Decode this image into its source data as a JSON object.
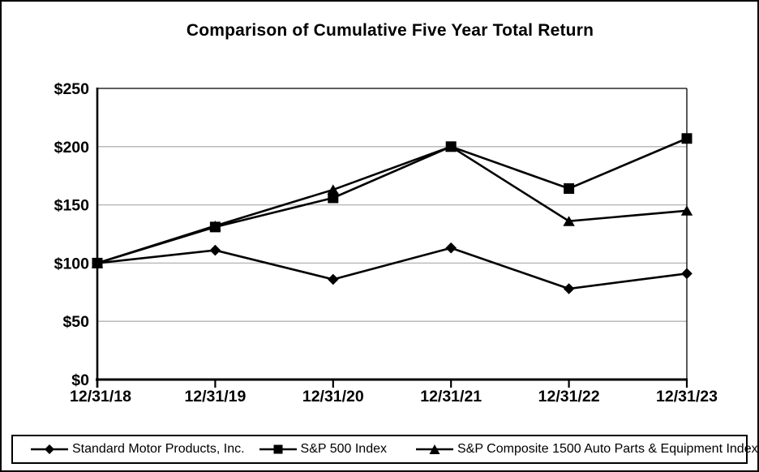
{
  "title": "Comparison of Cumulative Five Year Total Return",
  "chart_data": {
    "type": "line",
    "title": "Comparison of Cumulative Five Year Total Return",
    "categories": [
      "12/31/18",
      "12/31/19",
      "12/31/20",
      "12/31/21",
      "12/31/22",
      "12/31/23"
    ],
    "series": [
      {
        "name": "Standard Motor Products, Inc.",
        "marker": "diamond",
        "values": [
          100,
          111,
          86,
          113,
          78,
          91
        ]
      },
      {
        "name": "S&P 500 Index",
        "marker": "square",
        "values": [
          100,
          131,
          156,
          200,
          164,
          207
        ]
      },
      {
        "name": "S&P Composite 1500 Auto Parts & Equipment Index",
        "marker": "triangle",
        "values": [
          100,
          132,
          163,
          200,
          136,
          145
        ]
      }
    ],
    "y_axis": {
      "ticks": [
        0,
        50,
        100,
        150,
        200,
        250
      ],
      "tick_labels": [
        "$0",
        "$50",
        "$100",
        "$150",
        "$200",
        "$250"
      ],
      "ylim": [
        0,
        250
      ]
    },
    "xlabel": "",
    "ylabel": "",
    "grid": "horizontal",
    "legend_position": "bottom",
    "colors": {
      "line": "#000000",
      "marker": "#000000",
      "gridline": "#b3b3b3",
      "axis": "#000000",
      "background": "#ffffff"
    }
  }
}
